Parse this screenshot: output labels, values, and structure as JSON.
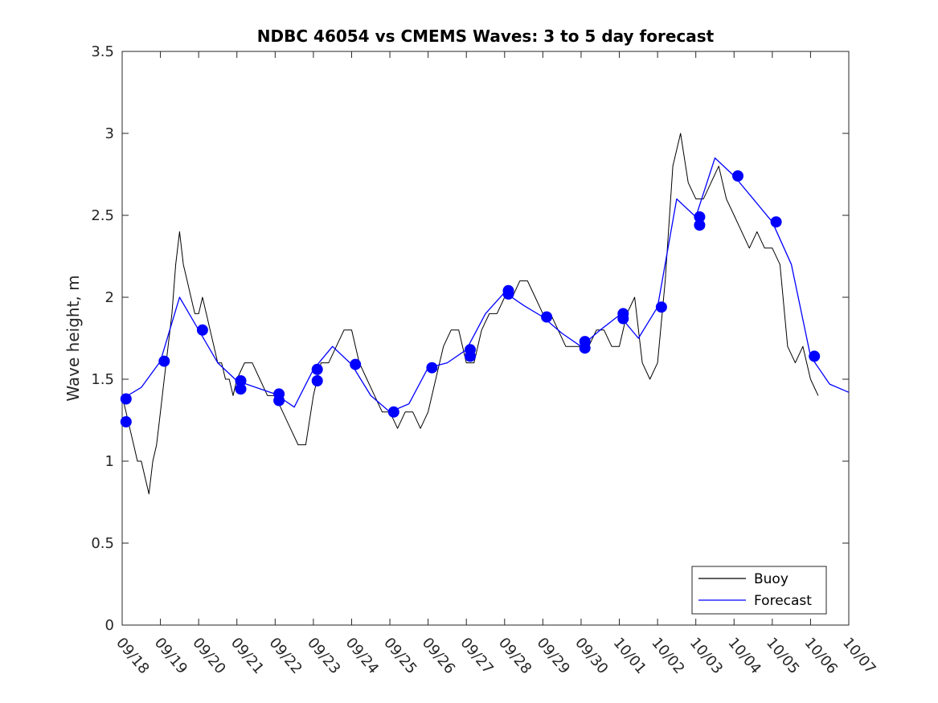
{
  "chart_data": {
    "type": "line",
    "title": "NDBC 46054 vs CMEMS Waves: 3 to 5 day forecast",
    "xlabel": "",
    "ylabel": "Wave height, m",
    "xlim": [
      "09/18",
      "10/07"
    ],
    "ylim": [
      0,
      3.5
    ],
    "x_tick_labels": [
      "09/18",
      "09/19",
      "09/20",
      "09/21",
      "09/22",
      "09/23",
      "09/24",
      "09/25",
      "09/26",
      "09/27",
      "09/28",
      "09/29",
      "09/30",
      "10/01",
      "10/02",
      "10/03",
      "10/04",
      "10/05",
      "10/06",
      "10/07"
    ],
    "y_ticks": [
      0,
      0.5,
      1,
      1.5,
      2,
      2.5,
      3,
      3.5
    ],
    "y_tick_labels": [
      "0",
      "0.5",
      "1",
      "1.5",
      "2",
      "2.5",
      "3",
      "3.5"
    ],
    "grid": false,
    "legend_position": "bottom-right",
    "series": [
      {
        "name": "Buoy",
        "color": "#000000",
        "x_days_from_0918": [
          0,
          0.1,
          0.2,
          0.3,
          0.4,
          0.5,
          0.6,
          0.7,
          0.8,
          0.9,
          1.0,
          1.1,
          1.2,
          1.3,
          1.4,
          1.5,
          1.6,
          1.7,
          1.8,
          1.9,
          2.0,
          2.1,
          2.2,
          2.3,
          2.4,
          2.5,
          2.6,
          2.7,
          2.8,
          2.9,
          3.0,
          3.2,
          3.4,
          3.6,
          3.8,
          4.0,
          4.2,
          4.4,
          4.6,
          4.8,
          5.0,
          5.2,
          5.4,
          5.6,
          5.8,
          6.0,
          6.2,
          6.4,
          6.6,
          6.8,
          7.0,
          7.2,
          7.4,
          7.6,
          7.8,
          8.0,
          8.2,
          8.4,
          8.6,
          8.8,
          9.0,
          9.2,
          9.4,
          9.6,
          9.8,
          10.0,
          10.2,
          10.4,
          10.6,
          10.8,
          11.0,
          11.2,
          11.4,
          11.6,
          11.8,
          12.0,
          12.2,
          12.4,
          12.6,
          12.8,
          13.0,
          13.2,
          13.4,
          13.6,
          13.8,
          14.0,
          14.2,
          14.4,
          14.6,
          14.8,
          15.0,
          15.2,
          15.4,
          15.6,
          15.8,
          16.0,
          16.2,
          16.4,
          16.6,
          16.8,
          17.0,
          17.2,
          17.4,
          17.6,
          17.8,
          18.0,
          18.2
        ],
        "values": [
          1.4,
          1.3,
          1.2,
          1.1,
          1.0,
          1.0,
          0.9,
          0.8,
          1.0,
          1.1,
          1.3,
          1.5,
          1.7,
          1.9,
          2.2,
          2.4,
          2.2,
          2.1,
          2.0,
          1.9,
          1.9,
          2.0,
          1.9,
          1.8,
          1.7,
          1.6,
          1.6,
          1.5,
          1.5,
          1.4,
          1.5,
          1.6,
          1.6,
          1.5,
          1.4,
          1.4,
          1.3,
          1.2,
          1.1,
          1.1,
          1.4,
          1.6,
          1.6,
          1.7,
          1.8,
          1.8,
          1.6,
          1.5,
          1.4,
          1.3,
          1.3,
          1.2,
          1.3,
          1.3,
          1.2,
          1.3,
          1.5,
          1.7,
          1.8,
          1.8,
          1.6,
          1.6,
          1.8,
          1.9,
          1.9,
          2.0,
          2.0,
          2.1,
          2.1,
          2.0,
          1.9,
          1.9,
          1.8,
          1.7,
          1.7,
          1.7,
          1.7,
          1.8,
          1.8,
          1.7,
          1.7,
          1.9,
          2.0,
          1.6,
          1.5,
          1.6,
          2.1,
          2.8,
          3.0,
          2.7,
          2.6,
          2.6,
          2.7,
          2.8,
          2.6,
          2.5,
          2.4,
          2.3,
          2.4,
          2.3,
          2.3,
          2.2,
          1.7,
          1.6,
          1.7,
          1.5,
          1.4
        ]
      },
      {
        "name": "Forecast",
        "color": "#0000ff",
        "x_days_from_0918": [
          0,
          0.5,
          1.0,
          1.5,
          2.0,
          2.5,
          3.0,
          3.5,
          4.0,
          4.5,
          5.0,
          5.5,
          6.0,
          6.5,
          7.0,
          7.5,
          8.0,
          8.5,
          9.0,
          9.5,
          10.0,
          10.5,
          11.0,
          11.5,
          12.0,
          12.5,
          13.0,
          13.5,
          14.0,
          14.5,
          15.0,
          15.5,
          16.0,
          16.5,
          17.0,
          17.5,
          18.0,
          18.5,
          19.0
        ],
        "values": [
          1.38,
          1.45,
          1.61,
          2.0,
          1.8,
          1.6,
          1.49,
          1.45,
          1.41,
          1.33,
          1.56,
          1.7,
          1.59,
          1.4,
          1.3,
          1.35,
          1.57,
          1.6,
          1.68,
          1.9,
          2.03,
          1.95,
          1.88,
          1.78,
          1.7,
          1.8,
          1.89,
          1.75,
          1.94,
          2.6,
          2.49,
          2.85,
          2.74,
          2.6,
          2.46,
          2.2,
          1.64,
          1.47,
          1.42
        ]
      }
    ],
    "forecast_markers": {
      "x_days_from_0918": [
        0.1,
        0.1,
        1.1,
        2.1,
        3.1,
        3.1,
        4.1,
        4.1,
        5.1,
        5.1,
        6.1,
        7.1,
        8.1,
        9.1,
        9.1,
        10.1,
        10.1,
        11.1,
        12.1,
        12.1,
        13.1,
        13.1,
        14.1,
        15.1,
        15.1,
        16.1,
        17.1,
        18.1
      ],
      "values": [
        1.38,
        1.24,
        1.61,
        1.8,
        1.49,
        1.44,
        1.41,
        1.37,
        1.56,
        1.49,
        1.59,
        1.3,
        1.57,
        1.68,
        1.64,
        2.04,
        2.02,
        1.88,
        1.73,
        1.69,
        1.9,
        1.87,
        1.94,
        2.49,
        2.44,
        2.74,
        2.46,
        1.64
      ]
    }
  }
}
